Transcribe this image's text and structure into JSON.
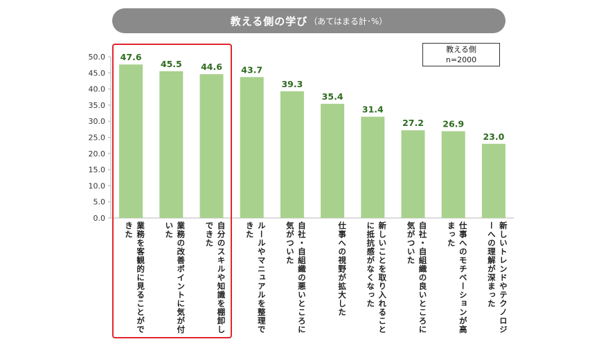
{
  "header": {
    "title_main": "教える側の学び",
    "title_sub": "（あてはまる計･%）"
  },
  "legend": {
    "line1": "教える側",
    "line2": "n=2000"
  },
  "colors": {
    "bar": "#a8d18d",
    "value_label": "#2e6b1f",
    "axis": "#b7b7b7",
    "highlight": "#e0252c",
    "banner": "#8a8a8a"
  },
  "chart_data": {
    "type": "bar",
    "title": "教える側の学び（あてはまる計･%）",
    "xlabel": "",
    "ylabel": "",
    "ylim": [
      0,
      50
    ],
    "yticks": [
      "0.0",
      "5.0",
      "10.0",
      "15.0",
      "20.0",
      "25.0",
      "30.0",
      "35.0",
      "40.0",
      "45.0",
      "50.0"
    ],
    "legend": [
      "教える側 n=2000"
    ],
    "highlighted_count": 3,
    "categories": [
      "業務を客観的に見ることができた",
      "業務の改善ポイントに気が付いた",
      "自分のスキルや知識を棚卸しできた",
      "ルールやマニュアルを整理できた",
      "自社・自組織の悪いところに気がついた",
      "仕事への視野が拡大した",
      "新しいことを取り入れることに抵抗感がなくなった",
      "自社・自組織の良いところに気がついた",
      "仕事へのモチベーションが高まった",
      "新しいトレンドやテクノロジーへの理解が深まった"
    ],
    "values": [
      47.6,
      45.5,
      44.6,
      43.7,
      39.3,
      35.4,
      31.4,
      27.2,
      26.9,
      23.0
    ],
    "value_labels": [
      "47.6",
      "45.5",
      "44.6",
      "43.7",
      "39.3",
      "35.4",
      "31.4",
      "27.2",
      "26.9",
      "23.0"
    ]
  }
}
